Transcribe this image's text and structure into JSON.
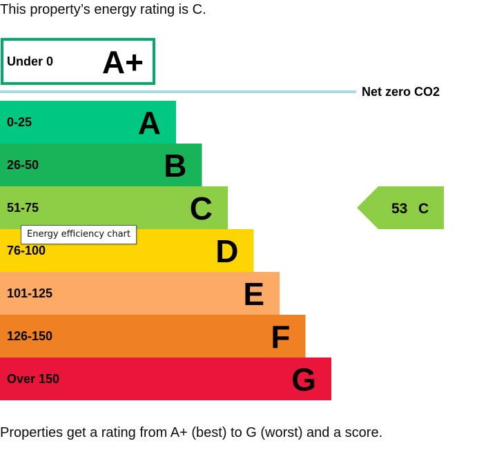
{
  "intro_text": "This property’s energy rating is C.",
  "footer_text": "Properties get a rating from A+ (best) to G (worst) and a score.",
  "tooltip_text": "Energy efficiency chart",
  "chart_data": {
    "type": "bar",
    "top_band": {
      "range": "Under 0",
      "letter": "A+",
      "color": "#00a86b"
    },
    "net_zero": {
      "label": "Net zero CO2",
      "color": "#a7d9e6"
    },
    "bands": [
      {
        "range": "0-25",
        "letter": "A",
        "color": "#00c781"
      },
      {
        "range": "26-50",
        "letter": "B",
        "color": "#19b459"
      },
      {
        "range": "51-75",
        "letter": "C",
        "color": "#8dce46"
      },
      {
        "range": "76-100",
        "letter": "D",
        "color": "#ffd500"
      },
      {
        "range": "101-125",
        "letter": "E",
        "color": "#fcaa65"
      },
      {
        "range": "126-150",
        "letter": "F",
        "color": "#ef8023"
      },
      {
        "range": "Over 150",
        "letter": "G",
        "color": "#e9153b"
      }
    ],
    "current_rating": {
      "score": "53",
      "letter": "C",
      "band_index": 2,
      "color": "#8dce46"
    }
  }
}
